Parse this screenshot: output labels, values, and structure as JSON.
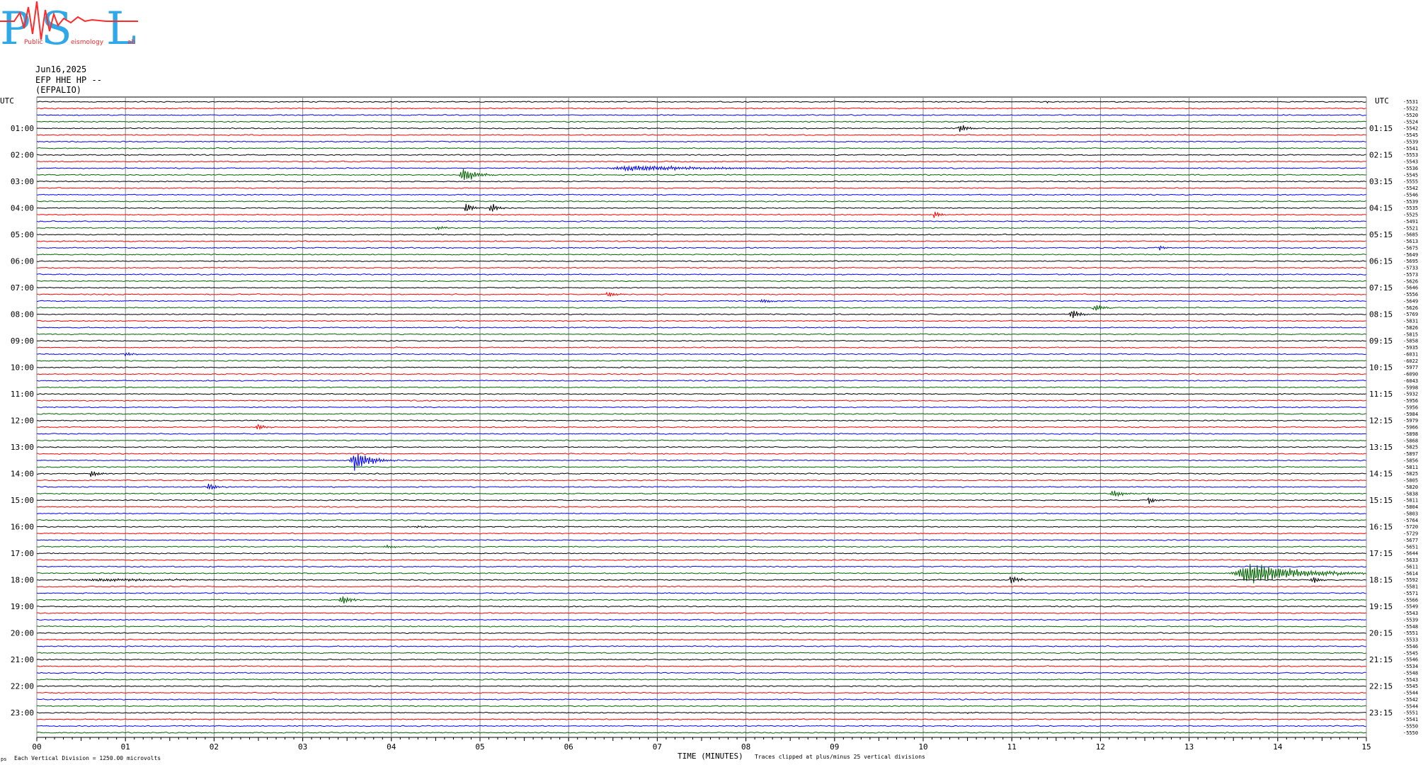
{
  "logo": {
    "letters": [
      "P",
      "S",
      "L"
    ],
    "small_words": [
      "Public",
      "eismology",
      "ab"
    ],
    "colors": {
      "letters": "#2ea8e8",
      "seismo": "#ff2a2a"
    }
  },
  "header": {
    "date": "Jun16,2025",
    "channel": "EFP HHE HP --",
    "station": "(EFPALIO)"
  },
  "footer": {
    "vertical_division": "Each Vertical Division = 1250.00 microvolts",
    "xlabel": "TIME (MINUTES)",
    "clip_note": "Traces clipped at plus/minus 25 vertical divisions",
    "corner_mark": "ps"
  },
  "chart_data": {
    "type": "line",
    "xlabel": "TIME (MINUTES)",
    "x_range": [
      0,
      15
    ],
    "x_ticks": [
      "00",
      "01",
      "02",
      "03",
      "04",
      "05",
      "06",
      "07",
      "08",
      "09",
      "10",
      "11",
      "12",
      "13",
      "14",
      "15"
    ],
    "left_axis_label": "UTC",
    "right_axis_label": "UTC",
    "left_ticks": [
      "01:00",
      "02:00",
      "03:00",
      "04:00",
      "05:00",
      "06:00",
      "07:00",
      "08:00",
      "09:00",
      "10:00",
      "11:00",
      "12:00",
      "13:00",
      "14:00",
      "15:00",
      "16:00",
      "17:00",
      "18:00",
      "19:00",
      "20:00",
      "21:00",
      "22:00",
      "23:00"
    ],
    "right_ticks": [
      "01:15",
      "02:15",
      "03:15",
      "04:15",
      "05:15",
      "06:15",
      "07:15",
      "08:15",
      "09:15",
      "10:15",
      "11:15",
      "12:15",
      "13:15",
      "14:15",
      "15:15",
      "16:15",
      "17:15",
      "18:15",
      "19:15",
      "20:15",
      "21:15",
      "22:15",
      "23:15"
    ],
    "trace_colors": [
      "#000000",
      "#ff0000",
      "#0000ff",
      "#006400"
    ],
    "trace_count": 96,
    "trace_offsets": [
      "-5531",
      "-5522",
      "-5520",
      "-5524",
      "-5542",
      "-5545",
      "-5539",
      "-5541",
      "-5553",
      "-5543",
      "-5536",
      "-5545",
      "-5555",
      "-5542",
      "-5546",
      "-5539",
      "-5535",
      "-5525",
      "-5491",
      "-5521",
      "-5685",
      "-5613",
      "-5675",
      "-5649",
      "-5695",
      "-5733",
      "-5573",
      "-5626",
      "-5646",
      "-5556",
      "-5649",
      "-5626",
      "-5769",
      "-5831",
      "-5826",
      "-5815",
      "-5858",
      "-5935",
      "-6031",
      "-6022",
      "-5977",
      "-6090",
      "-6043",
      "-5998",
      "-5932",
      "-5956",
      "-5956",
      "-5984",
      "-5979",
      "-5966",
      "-5898",
      "-5868",
      "-5825",
      "-5897",
      "-5856",
      "-5811",
      "-5825",
      "-5805",
      "-5820",
      "-5838",
      "-5811",
      "-5804",
      "-5803",
      "-5764",
      "-5720",
      "-5729",
      "-5677",
      "-5651",
      "-5644",
      "-5633",
      "-5611",
      "-5614",
      "-5592",
      "-5581",
      "-5571",
      "-5566",
      "-5549",
      "-5543",
      "-5539",
      "-5548",
      "-5551",
      "-5533",
      "-5546",
      "-5545",
      "-5546",
      "-5534",
      "-5548",
      "-5543",
      "-5545",
      "-5544",
      "-5542",
      "-5544",
      "-5551",
      "-5541",
      "-5550",
      "-5550"
    ],
    "events": [
      {
        "trace": 0,
        "minute": 11.4,
        "amp": 2.5,
        "width": 0.08
      },
      {
        "trace": 4,
        "minute": 10.42,
        "amp": 18,
        "width": 0.12
      },
      {
        "trace": 10,
        "minute": 6.75,
        "amp": 10,
        "width": 1.8
      },
      {
        "trace": 11,
        "minute": 4.82,
        "amp": 28,
        "width": 0.25
      },
      {
        "trace": 16,
        "minute": 4.85,
        "amp": 20,
        "width": 0.1
      },
      {
        "trace": 16,
        "minute": 5.13,
        "amp": 22,
        "width": 0.1
      },
      {
        "trace": 17,
        "minute": 10.13,
        "amp": 18,
        "width": 0.08
      },
      {
        "trace": 19,
        "minute": 4.52,
        "amp": 9,
        "width": 0.1
      },
      {
        "trace": 19,
        "minute": 14.4,
        "amp": 3,
        "width": 0.3
      },
      {
        "trace": 22,
        "minute": 12.67,
        "amp": 9,
        "width": 0.08
      },
      {
        "trace": 29,
        "minute": 6.45,
        "amp": 13,
        "width": 0.12
      },
      {
        "trace": 30,
        "minute": 8.2,
        "amp": 6,
        "width": 0.3
      },
      {
        "trace": 32,
        "minute": 11.68,
        "amp": 22,
        "width": 0.12
      },
      {
        "trace": 31,
        "minute": 11.95,
        "amp": 17,
        "width": 0.12
      },
      {
        "trace": 38,
        "minute": 1.02,
        "amp": 8,
        "width": 0.12
      },
      {
        "trace": 49,
        "minute": 2.5,
        "amp": 12,
        "width": 0.12
      },
      {
        "trace": 54,
        "minute": 3.6,
        "amp": 40,
        "width": 0.3
      },
      {
        "trace": 56,
        "minute": 0.62,
        "amp": 13,
        "width": 0.12
      },
      {
        "trace": 58,
        "minute": 1.95,
        "amp": 14,
        "width": 0.12
      },
      {
        "trace": 59,
        "minute": 12.15,
        "amp": 14,
        "width": 0.18
      },
      {
        "trace": 60,
        "minute": 12.55,
        "amp": 12,
        "width": 0.12
      },
      {
        "trace": 64,
        "minute": 4.3,
        "amp": 4,
        "width": 0.25
      },
      {
        "trace": 67,
        "minute": 3.95,
        "amp": 6,
        "width": 0.18
      },
      {
        "trace": 72,
        "minute": 0.75,
        "amp": 5,
        "width": 1.8
      },
      {
        "trace": 72,
        "minute": 11.0,
        "amp": 24,
        "width": 0.1
      },
      {
        "trace": 72,
        "minute": 14.4,
        "amp": 14,
        "width": 0.12
      },
      {
        "trace": 71,
        "minute": 13.7,
        "amp": 40,
        "width": 1.1
      },
      {
        "trace": 75,
        "minute": 3.45,
        "amp": 18,
        "width": 0.15
      },
      {
        "trace": 86,
        "minute": 10.6,
        "amp": 2,
        "width": 0.08
      },
      {
        "trace": 92,
        "minute": 10.5,
        "amp": 3,
        "width": 0.08
      }
    ]
  }
}
